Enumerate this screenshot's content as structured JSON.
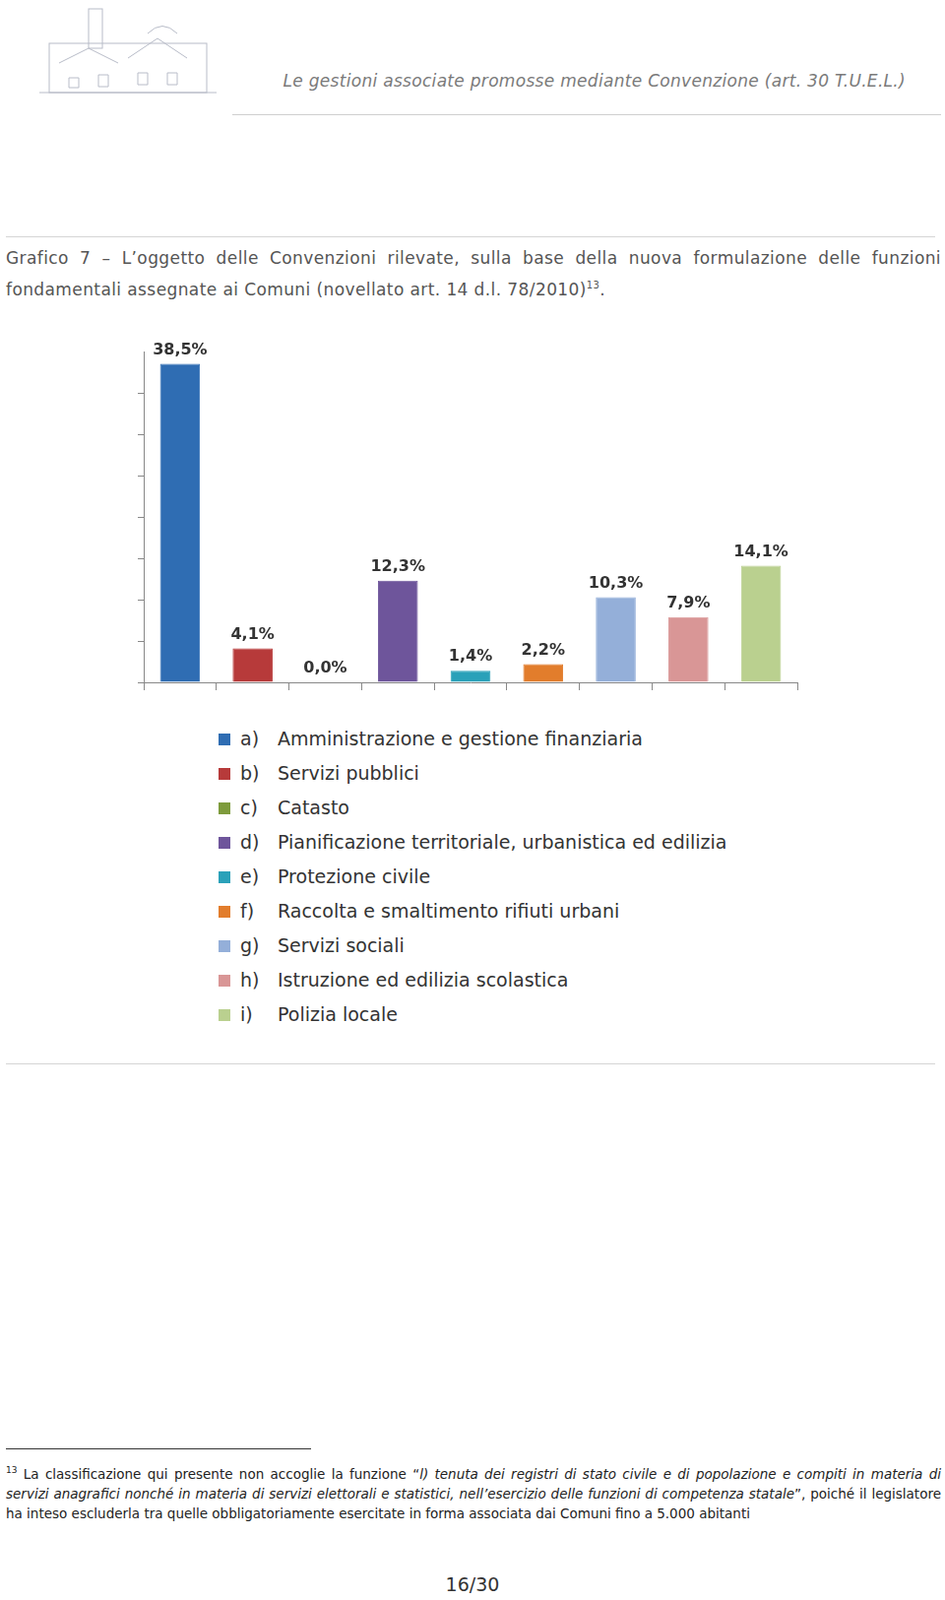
{
  "header": {
    "title": "Le gestioni associate promosse mediante Convenzione (art. 30 T.U.E.L.)"
  },
  "caption": {
    "text": "Grafico 7 – L’oggetto delle Convenzioni rilevate, sulla base della nuova formulazione delle funzioni fondamentali assegnate ai Comuni (novellato art. 14 d.l. 78/2010)",
    "note_ref": "13",
    "suffix": "."
  },
  "chart_data": {
    "type": "bar",
    "categories": [
      "a) Amministrazione e gestione finanziaria",
      "b) Servizi pubblici",
      "c) Catasto",
      "d) Pianificazione territoriale, urbanistica ed edilizia",
      "e) Protezione civile",
      "f) Raccolta e smaltimento rifiuti urbani",
      "g) Servizi sociali",
      "h) Istruzione ed edilizia scolastica",
      "i) Polizia locale"
    ],
    "values": [
      38.5,
      4.1,
      0.0,
      12.3,
      1.4,
      2.2,
      10.3,
      7.9,
      14.1
    ],
    "value_labels": [
      "38,5%",
      "4,1%",
      "0,0%",
      "12,3%",
      "1,4%",
      "2,2%",
      "10,3%",
      "7,9%",
      "14,1%"
    ],
    "colors": [
      "#2f6db3",
      "#b73a3a",
      "#7e9b3c",
      "#6e559b",
      "#2aa1b9",
      "#e27d2c",
      "#94afd9",
      "#d99696",
      "#bad08f"
    ],
    "ylim": [
      0,
      40
    ],
    "yticks": [
      0,
      5,
      10,
      15,
      20,
      25,
      30,
      35
    ],
    "grid": false,
    "tick_labels": false,
    "data_labels": true,
    "legend": "bottom"
  },
  "footnote": {
    "mark": "13",
    "text": "La classificazione qui presente non accoglie la funzione “",
    "italic": "l) tenuta dei registri di stato civile e di popolazione e compiti in materia di servizi anagrafici nonché in materia di servizi elettorali e statistici, nell’esercizio delle funzioni di competenza statale",
    "text_after": "”, poiché il legislatore ha inteso escluderla tra quelle obbligatoriamente esercitate in forma associata dai Comuni fino a 5.000 abitanti"
  },
  "page": "16/30"
}
